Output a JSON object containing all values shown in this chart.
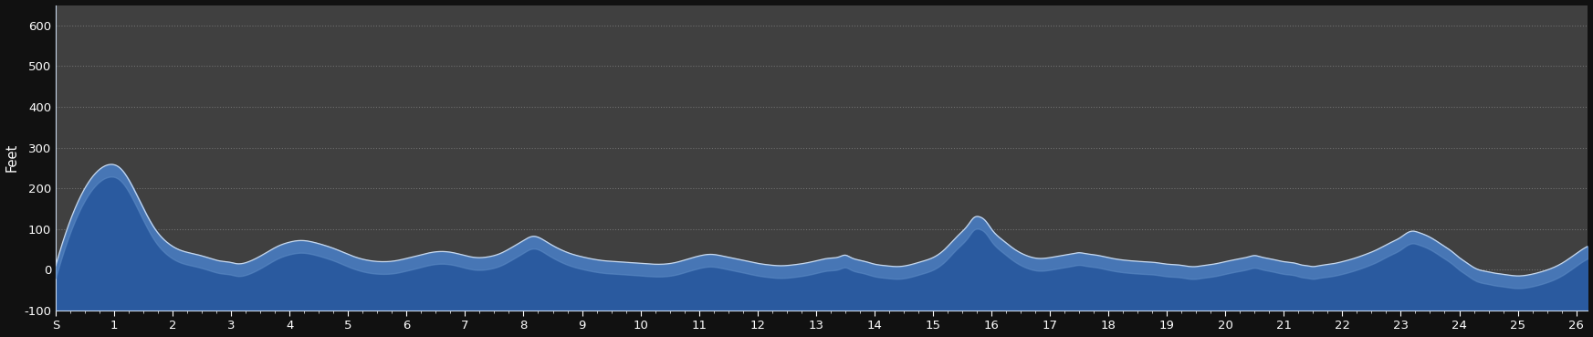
{
  "background_color": "#111111",
  "plot_bg_color": "#404040",
  "fill_color_top": "#5b8ac5",
  "fill_color_bottom": "#2a5a9f",
  "line_color": "#c8d8ec",
  "grid_color": "#888888",
  "text_color": "#ffffff",
  "ylabel": "Feet",
  "ylim": [
    -100,
    650
  ],
  "yticks": [
    -100,
    0,
    100,
    200,
    300,
    400,
    500,
    600
  ],
  "xtick_labels": [
    "S",
    "1",
    "2",
    "3",
    "4",
    "5",
    "6",
    "7",
    "8",
    "9",
    "10",
    "11",
    "12",
    "13",
    "14",
    "15",
    "16",
    "17",
    "18",
    "19",
    "20",
    "21",
    "22",
    "23",
    "24",
    "25",
    "26"
  ],
  "control_points": [
    [
      0.0,
      10
    ],
    [
      0.3,
      140
    ],
    [
      0.7,
      240
    ],
    [
      0.9,
      258
    ],
    [
      1.1,
      250
    ],
    [
      1.4,
      180
    ],
    [
      1.7,
      100
    ],
    [
      1.9,
      68
    ],
    [
      2.1,
      50
    ],
    [
      2.4,
      38
    ],
    [
      2.6,
      30
    ],
    [
      2.8,
      22
    ],
    [
      3.0,
      18
    ],
    [
      3.1,
      15
    ],
    [
      3.3,
      20
    ],
    [
      3.6,
      42
    ],
    [
      3.8,
      58
    ],
    [
      4.0,
      68
    ],
    [
      4.2,
      72
    ],
    [
      4.4,
      68
    ],
    [
      4.6,
      60
    ],
    [
      4.8,
      50
    ],
    [
      5.0,
      38
    ],
    [
      5.2,
      28
    ],
    [
      5.4,
      22
    ],
    [
      5.6,
      20
    ],
    [
      5.8,
      22
    ],
    [
      6.0,
      28
    ],
    [
      6.2,
      35
    ],
    [
      6.4,
      42
    ],
    [
      6.6,
      45
    ],
    [
      6.8,
      42
    ],
    [
      7.0,
      35
    ],
    [
      7.2,
      30
    ],
    [
      7.4,
      32
    ],
    [
      7.6,
      40
    ],
    [
      7.8,
      55
    ],
    [
      8.0,
      72
    ],
    [
      8.15,
      82
    ],
    [
      8.25,
      80
    ],
    [
      8.4,
      68
    ],
    [
      8.6,
      52
    ],
    [
      8.8,
      40
    ],
    [
      9.0,
      32
    ],
    [
      9.2,
      26
    ],
    [
      9.4,
      22
    ],
    [
      9.6,
      20
    ],
    [
      9.8,
      18
    ],
    [
      10.0,
      16
    ],
    [
      10.2,
      14
    ],
    [
      10.4,
      14
    ],
    [
      10.6,
      18
    ],
    [
      10.8,
      26
    ],
    [
      11.0,
      34
    ],
    [
      11.2,
      38
    ],
    [
      11.4,
      34
    ],
    [
      11.6,
      28
    ],
    [
      11.8,
      22
    ],
    [
      12.0,
      16
    ],
    [
      12.2,
      12
    ],
    [
      12.4,
      10
    ],
    [
      12.6,
      12
    ],
    [
      12.8,
      16
    ],
    [
      13.0,
      22
    ],
    [
      13.2,
      28
    ],
    [
      13.4,
      32
    ],
    [
      13.5,
      36
    ],
    [
      13.6,
      30
    ],
    [
      13.8,
      22
    ],
    [
      14.0,
      14
    ],
    [
      14.2,
      10
    ],
    [
      14.4,
      8
    ],
    [
      14.6,
      12
    ],
    [
      14.8,
      20
    ],
    [
      15.0,
      30
    ],
    [
      15.2,
      50
    ],
    [
      15.4,
      80
    ],
    [
      15.6,
      110
    ],
    [
      15.7,
      128
    ],
    [
      15.8,
      130
    ],
    [
      15.9,
      120
    ],
    [
      16.0,
      100
    ],
    [
      16.2,
      72
    ],
    [
      16.4,
      50
    ],
    [
      16.6,
      35
    ],
    [
      16.8,
      28
    ],
    [
      17.0,
      30
    ],
    [
      17.2,
      35
    ],
    [
      17.4,
      40
    ],
    [
      17.5,
      42
    ],
    [
      17.6,
      40
    ],
    [
      17.8,
      36
    ],
    [
      18.0,
      30
    ],
    [
      18.2,
      25
    ],
    [
      18.4,
      22
    ],
    [
      18.6,
      20
    ],
    [
      18.8,
      18
    ],
    [
      19.0,
      14
    ],
    [
      19.2,
      12
    ],
    [
      19.3,
      10
    ],
    [
      19.4,
      8
    ],
    [
      19.5,
      8
    ],
    [
      19.6,
      10
    ],
    [
      19.8,
      14
    ],
    [
      20.0,
      20
    ],
    [
      20.2,
      26
    ],
    [
      20.4,
      32
    ],
    [
      20.5,
      35
    ],
    [
      20.6,
      32
    ],
    [
      20.8,
      26
    ],
    [
      21.0,
      20
    ],
    [
      21.2,
      16
    ],
    [
      21.3,
      12
    ],
    [
      21.4,
      10
    ],
    [
      21.5,
      8
    ],
    [
      21.6,
      10
    ],
    [
      21.8,
      14
    ],
    [
      22.0,
      20
    ],
    [
      22.2,
      28
    ],
    [
      22.4,
      38
    ],
    [
      22.6,
      50
    ],
    [
      22.8,
      65
    ],
    [
      23.0,
      80
    ],
    [
      23.1,
      90
    ],
    [
      23.2,
      95
    ],
    [
      23.3,
      92
    ],
    [
      23.5,
      80
    ],
    [
      23.7,
      62
    ],
    [
      23.9,
      42
    ],
    [
      24.0,
      30
    ],
    [
      24.1,
      20
    ],
    [
      24.2,
      10
    ],
    [
      24.3,
      2
    ],
    [
      24.5,
      -5
    ],
    [
      24.6,
      -8
    ],
    [
      24.7,
      -10
    ],
    [
      24.8,
      -12
    ],
    [
      25.0,
      -15
    ],
    [
      25.2,
      -12
    ],
    [
      25.4,
      -5
    ],
    [
      25.6,
      5
    ],
    [
      25.8,
      20
    ],
    [
      26.0,
      40
    ],
    [
      26.2,
      58
    ]
  ]
}
